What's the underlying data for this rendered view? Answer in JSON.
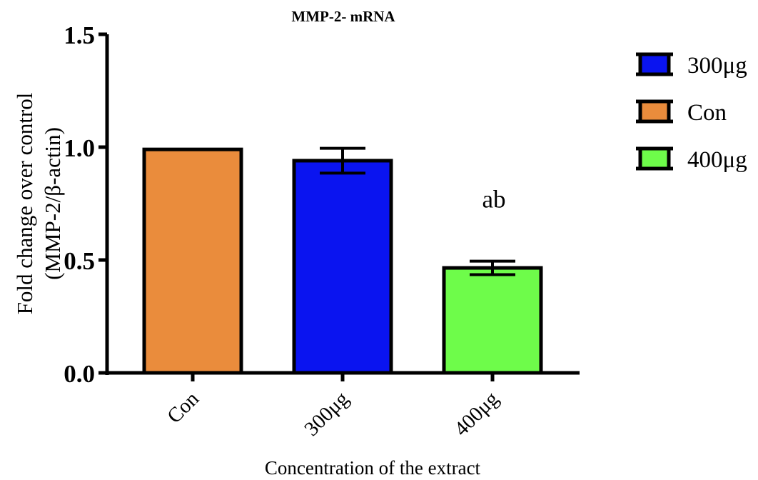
{
  "chart_data": {
    "type": "bar",
    "title": "MMP-2- mRNA",
    "xlabel": "Concentration of the extract",
    "ylabel_line1": "Fold change over control",
    "ylabel_line2": "(MMP-2/β-actin)",
    "ylim": [
      0,
      1.5
    ],
    "yticks": [
      "0.0",
      "0.5",
      "1.0",
      "1.5"
    ],
    "ytick_values": [
      0,
      0.5,
      1.0,
      1.5
    ],
    "categories": [
      "Con",
      "300μg",
      "400μg"
    ],
    "values": [
      0.99,
      0.94,
      0.465
    ],
    "errors": [
      0,
      0.055,
      0.03
    ],
    "colors": [
      "#ea8c3c",
      "#0a14f0",
      "#6efc4a"
    ],
    "bar_annotations": [
      "",
      "",
      "ab"
    ],
    "grid": false,
    "legend_position": "right",
    "legend": [
      {
        "label": "300μg",
        "color": "#0a14f0"
      },
      {
        "label": "Con",
        "color": "#ea8c3c"
      },
      {
        "label": "400μg",
        "color": "#6efc4a"
      }
    ]
  }
}
